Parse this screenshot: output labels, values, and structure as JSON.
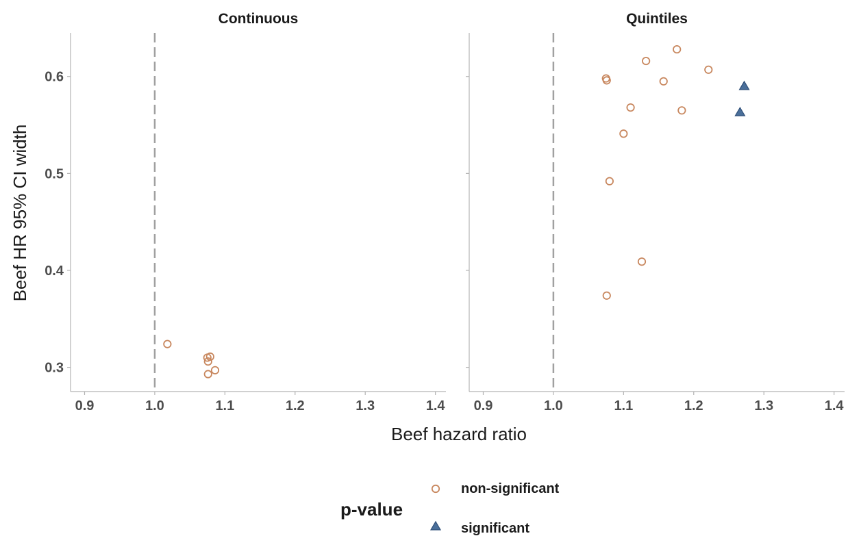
{
  "chart_data": {
    "type": "scatter",
    "xlabel": "Beef hazard ratio",
    "ylabel": "Beef HR 95% CI width",
    "xlim": [
      0.88,
      1.415
    ],
    "ylim": [
      0.275,
      0.645
    ],
    "x_ticks": [
      "0.9",
      "1.0",
      "1.1",
      "1.2",
      "1.3",
      "1.4"
    ],
    "y_ticks": [
      "0.3",
      "0.4",
      "0.5",
      "0.6"
    ],
    "reference_line_x": 1.0,
    "grid": false,
    "legend_position": "bottom",
    "colors": {
      "non-significant": "#c8875e",
      "significant": "#4a6f9a",
      "reference": "#a0a0a0",
      "axis": "#b3b3b3"
    },
    "legend": {
      "title": "p-value",
      "entries": [
        {
          "label": "non-significant",
          "shape": "circle"
        },
        {
          "label": "significant",
          "shape": "triangle"
        }
      ]
    },
    "panels": [
      {
        "title": "Continuous",
        "points": [
          {
            "x": 1.018,
            "y": 0.324,
            "group": "non-significant"
          },
          {
            "x": 1.075,
            "y": 0.31,
            "group": "non-significant"
          },
          {
            "x": 1.079,
            "y": 0.311,
            "group": "non-significant"
          },
          {
            "x": 1.076,
            "y": 0.306,
            "group": "non-significant"
          },
          {
            "x": 1.086,
            "y": 0.297,
            "group": "non-significant"
          },
          {
            "x": 1.076,
            "y": 0.293,
            "group": "non-significant"
          }
        ]
      },
      {
        "title": "Quintiles",
        "points": [
          {
            "x": 1.176,
            "y": 0.628,
            "group": "non-significant"
          },
          {
            "x": 1.132,
            "y": 0.616,
            "group": "non-significant"
          },
          {
            "x": 1.221,
            "y": 0.607,
            "group": "non-significant"
          },
          {
            "x": 1.075,
            "y": 0.598,
            "group": "non-significant"
          },
          {
            "x": 1.076,
            "y": 0.596,
            "group": "non-significant"
          },
          {
            "x": 1.157,
            "y": 0.595,
            "group": "non-significant"
          },
          {
            "x": 1.11,
            "y": 0.568,
            "group": "non-significant"
          },
          {
            "x": 1.183,
            "y": 0.565,
            "group": "non-significant"
          },
          {
            "x": 1.1,
            "y": 0.541,
            "group": "non-significant"
          },
          {
            "x": 1.08,
            "y": 0.492,
            "group": "non-significant"
          },
          {
            "x": 1.126,
            "y": 0.409,
            "group": "non-significant"
          },
          {
            "x": 1.076,
            "y": 0.374,
            "group": "non-significant"
          },
          {
            "x": 1.272,
            "y": 0.59,
            "group": "significant"
          },
          {
            "x": 1.266,
            "y": 0.563,
            "group": "significant"
          }
        ]
      }
    ]
  }
}
